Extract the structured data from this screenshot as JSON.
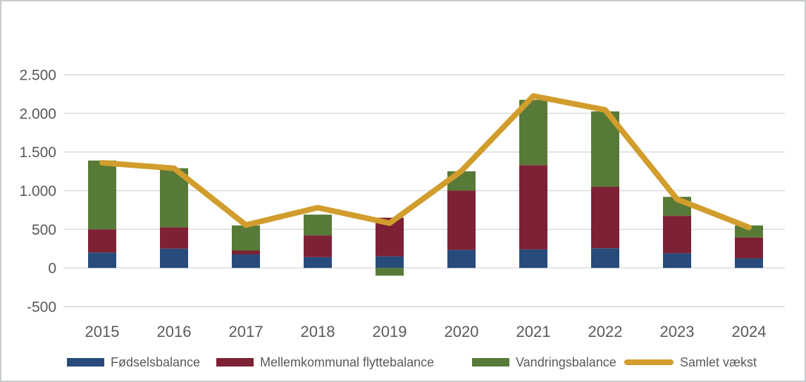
{
  "window": {
    "background": "#ffffff",
    "border_color": "#c8cbcd"
  },
  "chart_data": {
    "type": "bar",
    "subtype": "stacked-column-with-line-overlay",
    "title": "",
    "xlabel": "",
    "ylabel": "",
    "categories": [
      "2015",
      "2016",
      "2017",
      "2018",
      "2019",
      "2020",
      "2021",
      "2022",
      "2023",
      "2024"
    ],
    "series": [
      {
        "name": "Fødselsbalance",
        "type": "bar",
        "color": "#274b7a",
        "values": [
          200,
          250,
          175,
          140,
          150,
          235,
          240,
          255,
          190,
          125
        ]
      },
      {
        "name": "Mellemkommunal flyttebalance",
        "type": "bar",
        "color": "#7d2134",
        "values": [
          300,
          275,
          50,
          280,
          500,
          765,
          1090,
          795,
          485,
          270
        ]
      },
      {
        "name": "Vandringsbalance",
        "type": "bar",
        "color": "#587a38",
        "values": [
          890,
          765,
          325,
          270,
          -100,
          250,
          845,
          975,
          245,
          155
        ]
      },
      {
        "name": "Samlet vækst",
        "type": "line",
        "color": "#d19d2c",
        "values": [
          1360,
          1290,
          555,
          780,
          580,
          1255,
          2225,
          2045,
          890,
          525
        ]
      }
    ],
    "ylim": [
      -500,
      2500
    ],
    "y_ticks": [
      {
        "value": 2500,
        "label": "2.500"
      },
      {
        "value": 2000,
        "label": "2.000"
      },
      {
        "value": 1500,
        "label": "1.500"
      },
      {
        "value": 1000,
        "label": "1.000"
      },
      {
        "value": 500,
        "label": "500"
      },
      {
        "value": 0,
        "label": "0"
      },
      {
        "value": -500,
        "label": "-500"
      }
    ],
    "grid": true,
    "gridline_color": "#d9d9d9",
    "tick_text_color": "#595959",
    "legend_position": "bottom"
  }
}
